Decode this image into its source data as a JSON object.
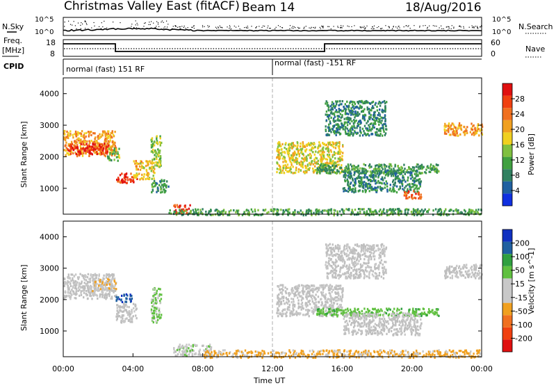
{
  "header": {
    "station": "Christmas Valley East (fitACF)",
    "beam": "Beam 14",
    "date": "18/Aug/2016"
  },
  "left_labels": {
    "nsky": "N.Sky",
    "freq_line1": "Freq.",
    "freq_line2": "[MHz]",
    "cpid": "CPID"
  },
  "right_labels": {
    "nsearch": "N.Search",
    "nave": "Nave"
  },
  "noise_axis": {
    "top": "10^5",
    "bottom": "10^0"
  },
  "freq_axis": {
    "top": "18",
    "bottom": "8"
  },
  "nave_axis": {
    "top": "60",
    "bottom": "0"
  },
  "cpid_segments": [
    {
      "label": "normal (fast) 151 RF",
      "start_hour": 0
    },
    {
      "label": "normal (fast) -151 RF",
      "start_hour": 12
    }
  ],
  "time_axis": {
    "label": "Time UT",
    "ticks": [
      "00:00",
      "04:00",
      "08:00",
      "12:00",
      "16:00",
      "20:00",
      "00:00"
    ]
  },
  "colors": {
    "power": [
      "#1030e0",
      "#2060a0",
      "#308060",
      "#40a040",
      "#80c040",
      "#f0d020",
      "#f0a020",
      "#f07020",
      "#f04010",
      "#e01010"
    ],
    "velocity": [
      "#e01010",
      "#f04010",
      "#f07020",
      "#f0a020",
      "#c8c8c8",
      "#c8c8c8",
      "#60c040",
      "#30a040",
      "#2060a0",
      "#1030c0"
    ],
    "ground_scatter": "#bebebe"
  },
  "chart_data": [
    {
      "type": "heatmap",
      "name": "power-panel",
      "x_quantity": "time UT (hours)",
      "xlim": [
        0,
        24
      ],
      "ylabel": "Slant Range [km]",
      "ylim": [
        180,
        4500
      ],
      "yticks": [
        "1000",
        "2000",
        "3000",
        "4000"
      ],
      "colorbar_label": "Power [dB]",
      "colorbar_ticks": [
        "4",
        "8",
        "12",
        "16",
        "20",
        "24",
        "28"
      ],
      "zlim": [
        0,
        30
      ],
      "scatter_regions": [
        {
          "t0": 0.0,
          "t1": 3.0,
          "r0": 2050,
          "r1": 2850,
          "power": 20
        },
        {
          "t0": 0.2,
          "t1": 2.6,
          "r0": 2100,
          "r1": 2450,
          "power": 27
        },
        {
          "t0": 2.5,
          "t1": 3.2,
          "r0": 1900,
          "r1": 2300,
          "power": 12
        },
        {
          "t0": 3.0,
          "t1": 4.2,
          "r0": 1200,
          "r1": 1500,
          "power": 26
        },
        {
          "t0": 4.0,
          "t1": 5.2,
          "r0": 1300,
          "r1": 1900,
          "power": 18
        },
        {
          "t0": 5.0,
          "t1": 5.6,
          "r0": 1700,
          "r1": 2700,
          "power": 14
        },
        {
          "t0": 5.0,
          "t1": 6.0,
          "r0": 900,
          "r1": 1300,
          "power": 9
        },
        {
          "t0": 6.3,
          "t1": 7.3,
          "r0": 230,
          "r1": 500,
          "power": 25
        },
        {
          "t0": 6.0,
          "t1": 24.0,
          "r0": 180,
          "r1": 380,
          "power": 10
        },
        {
          "t0": 12.2,
          "t1": 16.0,
          "r0": 1500,
          "r1": 2500,
          "power": 16
        },
        {
          "t0": 14.5,
          "t1": 21.5,
          "r0": 1500,
          "r1": 1800,
          "power": 10
        },
        {
          "t0": 16.0,
          "t1": 20.5,
          "r0": 900,
          "r1": 1600,
          "power": 8
        },
        {
          "t0": 19.5,
          "t1": 20.5,
          "r0": 700,
          "r1": 950,
          "power": 24
        },
        {
          "t0": 15.0,
          "t1": 18.5,
          "r0": 2700,
          "r1": 3800,
          "power": 8
        },
        {
          "t0": 21.8,
          "t1": 24.0,
          "r0": 2700,
          "r1": 3100,
          "power": 20
        }
      ]
    },
    {
      "type": "heatmap",
      "name": "velocity-panel",
      "x_quantity": "time UT (hours)",
      "xlim": [
        0,
        24
      ],
      "ylabel": "Slant Range [km]",
      "ylim": [
        180,
        4500
      ],
      "yticks": [
        "1000",
        "2000",
        "3000",
        "4000"
      ],
      "colorbar_label": "Velocity [m s^-1]",
      "colorbar_ticks": [
        "200",
        "100",
        "50",
        "15",
        "-15",
        "-50",
        "-100",
        "-200"
      ],
      "zlim": [
        -250,
        250
      ],
      "scatter_regions": [
        {
          "t0": 0.0,
          "t1": 3.0,
          "r0": 2050,
          "r1": 2850,
          "velocity": 0
        },
        {
          "t0": 1.5,
          "t1": 3.0,
          "r0": 2300,
          "r1": 2700,
          "velocity": -40
        },
        {
          "t0": 3.0,
          "t1": 4.2,
          "r0": 1300,
          "r1": 1900,
          "velocity": 0
        },
        {
          "t0": 3.0,
          "t1": 3.9,
          "r0": 1950,
          "r1": 2200,
          "velocity": 180
        },
        {
          "t0": 5.0,
          "t1": 5.6,
          "r0": 1300,
          "r1": 2400,
          "velocity": 60
        },
        {
          "t0": 6.3,
          "t1": 8.5,
          "r0": 230,
          "r1": 600,
          "velocity": 30
        },
        {
          "t0": 8.0,
          "t1": 24.0,
          "r0": 180,
          "r1": 420,
          "velocity": -60
        },
        {
          "t0": 12.2,
          "t1": 16.0,
          "r0": 1500,
          "r1": 2500,
          "velocity": 0
        },
        {
          "t0": 14.5,
          "t1": 21.5,
          "r0": 1500,
          "r1": 1750,
          "velocity": 80
        },
        {
          "t0": 16.0,
          "t1": 20.5,
          "r0": 900,
          "r1": 1600,
          "velocity": 0
        },
        {
          "t0": 15.0,
          "t1": 18.5,
          "r0": 2700,
          "r1": 3800,
          "velocity": 0
        },
        {
          "t0": 21.8,
          "t1": 24.0,
          "r0": 2700,
          "r1": 3150,
          "velocity": 0
        }
      ]
    }
  ]
}
